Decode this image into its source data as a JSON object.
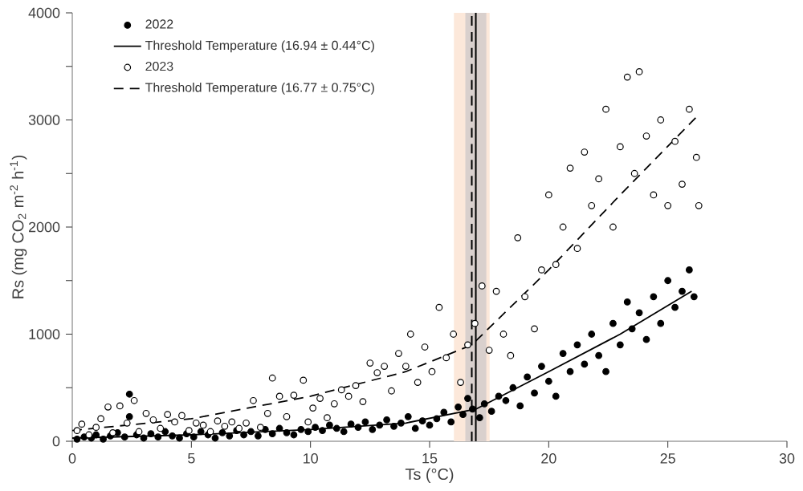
{
  "chart_data": {
    "type": "scatter",
    "xlabel": "Ts (°C)",
    "ylabel": "Rs (mg CO$_{2}$ m$^{-2}$ h$^{-1}$)",
    "xlim": [
      0,
      30
    ],
    "ylim": [
      0,
      4000
    ],
    "xticks": [
      0,
      5,
      10,
      15,
      20,
      25,
      30
    ],
    "yticks": [
      0,
      {
        "value": 500,
        "label": null
      },
      1000,
      {
        "value": 1500,
        "label": null
      },
      2000,
      {
        "value": 2500,
        "label": null
      },
      3000,
      {
        "value": 3500,
        "label": null
      },
      4000
    ],
    "legend": "top left",
    "series": [
      {
        "name": "2022",
        "color": "#000000",
        "x": [
          0.2,
          0.5,
          0.8,
          1.0,
          1.3,
          1.6,
          1.9,
          2.2,
          2.4,
          2.4,
          2.7,
          3.0,
          3.3,
          3.6,
          3.9,
          4.2,
          4.5,
          4.8,
          5.1,
          5.4,
          5.7,
          6.0,
          6.3,
          6.6,
          6.9,
          7.2,
          7.5,
          7.8,
          8.1,
          8.4,
          8.7,
          9.0,
          9.3,
          9.6,
          9.9,
          10.2,
          10.5,
          10.8,
          11.1,
          11.4,
          11.7,
          12.0,
          12.3,
          12.6,
          12.9,
          13.2,
          13.5,
          13.8,
          14.1,
          14.4,
          14.7,
          15.0,
          15.3,
          15.6,
          15.9,
          16.2,
          16.4,
          16.6,
          16.8,
          17.1,
          17.3,
          17.6,
          17.9,
          18.2,
          18.5,
          18.8,
          19.1,
          19.4,
          19.7,
          20.0,
          20.3,
          20.6,
          20.9,
          21.2,
          21.5,
          21.8,
          22.1,
          22.4,
          22.7,
          23.0,
          23.3,
          23.5,
          23.8,
          24.1,
          24.4,
          24.7,
          25.0,
          25.3,
          25.6,
          25.9,
          26.1
        ],
        "values": [
          20,
          40,
          30,
          60,
          20,
          50,
          80,
          40,
          440,
          230,
          60,
          30,
          70,
          40,
          90,
          50,
          30,
          70,
          40,
          90,
          60,
          30,
          80,
          50,
          100,
          60,
          90,
          50,
          110,
          70,
          120,
          80,
          60,
          110,
          90,
          130,
          100,
          150,
          120,
          90,
          160,
          130,
          180,
          110,
          150,
          200,
          140,
          170,
          230,
          120,
          190,
          150,
          210,
          270,
          180,
          320,
          250,
          400,
          300,
          220,
          350,
          280,
          420,
          380,
          500,
          330,
          600,
          450,
          700,
          560,
          420,
          820,
          650,
          900,
          720,
          1000,
          800,
          650,
          1100,
          900,
          1300,
          1050,
          1200,
          950,
          1350,
          1100,
          1500,
          1250,
          1400,
          1600,
          1350
        ]
      },
      {
        "name": "Threshold Temperature (16.94 ± 0.44°C)",
        "type": "line",
        "line_style": "solid",
        "marker": "none",
        "color": "#000000",
        "x": [
          0,
          5,
          10,
          14,
          16.94,
          20,
          23,
          26
        ],
        "values": [
          30,
          60,
          110,
          170,
          300,
          650,
          1000,
          1400
        ]
      },
      {
        "name": "2023",
        "color": "#ffffff",
        "x": [
          0.2,
          0.4,
          0.7,
          1.0,
          1.2,
          1.5,
          1.7,
          2.0,
          2.3,
          2.6,
          2.8,
          3.1,
          3.4,
          3.7,
          4.0,
          4.3,
          4.6,
          4.9,
          5.2,
          5.5,
          5.8,
          6.1,
          6.4,
          6.7,
          7.0,
          7.3,
          7.6,
          7.9,
          8.2,
          8.4,
          8.7,
          9.0,
          9.3,
          9.7,
          9.9,
          10.1,
          10.4,
          10.7,
          11.0,
          11.3,
          11.6,
          11.9,
          12.2,
          12.5,
          12.8,
          13.1,
          13.4,
          13.7,
          14.0,
          14.2,
          14.5,
          14.8,
          15.1,
          15.4,
          15.7,
          16.0,
          16.3,
          16.6,
          16.9,
          17.2,
          17.5,
          17.8,
          18.1,
          18.4,
          18.7,
          19.0,
          19.4,
          19.7,
          20.0,
          20.3,
          20.6,
          20.9,
          21.2,
          21.5,
          21.8,
          22.1,
          22.4,
          22.7,
          23.0,
          23.3,
          23.6,
          23.8,
          24.1,
          24.4,
          24.7,
          25.0,
          25.3,
          25.6,
          25.9,
          26.2,
          26.3
        ],
        "values": [
          100,
          160,
          60,
          130,
          210,
          320,
          80,
          330,
          170,
          380,
          90,
          260,
          200,
          120,
          250,
          180,
          240,
          100,
          170,
          150,
          90,
          190,
          140,
          180,
          120,
          170,
          380,
          130,
          260,
          590,
          420,
          230,
          430,
          570,
          180,
          310,
          400,
          220,
          350,
          480,
          420,
          520,
          370,
          730,
          640,
          700,
          470,
          820,
          700,
          1000,
          550,
          880,
          650,
          1250,
          780,
          1000,
          550,
          900,
          1100,
          1450,
          850,
          1400,
          1000,
          800,
          1900,
          1350,
          1050,
          1600,
          2300,
          1650,
          2000,
          2550,
          1800,
          2700,
          2200,
          2450,
          3100,
          2000,
          2750,
          3400,
          2500,
          3450,
          2850,
          2300,
          3000,
          2200,
          2800,
          2400,
          3100,
          2650,
          2200
        ]
      },
      {
        "name": "Threshold Temperature (16.77 ± 0.75°C)",
        "type": "line",
        "line_style": "dashed",
        "marker": "none",
        "color": "#000000",
        "x": [
          0,
          5,
          10,
          14,
          16.77,
          20,
          23,
          26.3
        ],
        "values": [
          100,
          210,
          420,
          650,
          900,
          1600,
          2300,
          3050
        ]
      }
    ],
    "bands": [
      {
        "axis": "x",
        "from": 16.02,
        "to": 17.52,
        "color": "#fce8da"
      },
      {
        "axis": "x",
        "from": 16.5,
        "to": 17.38,
        "color": "#d9d0cd"
      }
    ],
    "ref_lines": [
      {
        "axis": "x",
        "value": 16.77,
        "line_style": "dashed",
        "color": "#000000"
      },
      {
        "axis": "x",
        "value": 16.94,
        "line_style": "solid",
        "color": "#000000"
      }
    ]
  }
}
